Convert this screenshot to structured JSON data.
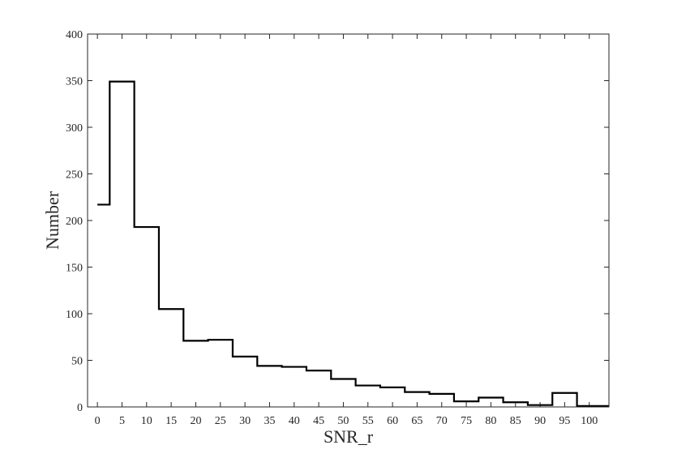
{
  "chart_data": {
    "type": "histogram",
    "xlabel": "SNR_r",
    "ylabel": "Number",
    "xlim": [
      -2,
      104
    ],
    "ylim": [
      0,
      400
    ],
    "xticks": [
      0,
      5,
      10,
      15,
      20,
      25,
      30,
      35,
      40,
      45,
      50,
      55,
      60,
      65,
      70,
      75,
      80,
      85,
      90,
      95,
      100
    ],
    "yticks": [
      0,
      50,
      100,
      150,
      200,
      250,
      300,
      350,
      400
    ],
    "grid": false,
    "step_style": "centered-stairs",
    "series": [
      {
        "x": [
          0,
          5,
          10,
          15,
          20,
          25,
          30,
          35,
          40,
          45,
          50,
          55,
          60,
          65,
          70,
          75,
          80,
          85,
          90,
          95,
          100
        ],
        "values": [
          217,
          349,
          193,
          105,
          71,
          72,
          54,
          44,
          43,
          39,
          30,
          23,
          21,
          16,
          14,
          6,
          10,
          5,
          2,
          15,
          1
        ],
        "color": "#000000"
      }
    ]
  }
}
